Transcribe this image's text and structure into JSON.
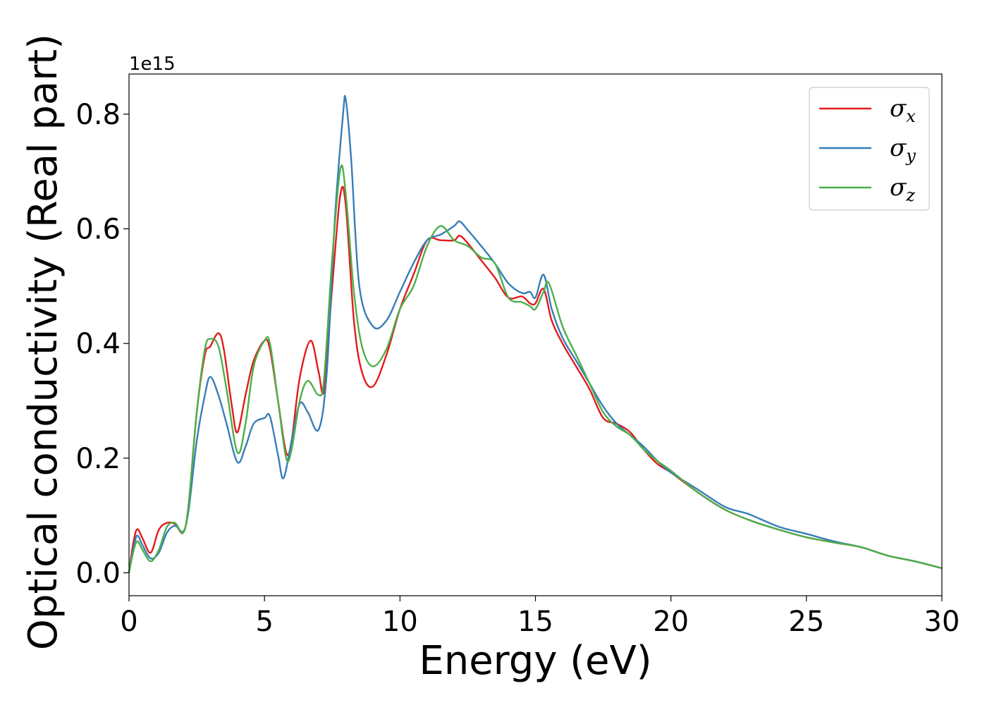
{
  "chart_data": {
    "type": "line",
    "xlabel": "Energy (eV)",
    "ylabel": "Optical conductivity (Real part)",
    "y_offset_label": "1e15",
    "xlim": [
      0,
      30
    ],
    "ylim": [
      -0.04,
      0.87
    ],
    "x_ticks": [
      0,
      5,
      10,
      15,
      20,
      25,
      30
    ],
    "y_ticks": [
      0.0,
      0.2,
      0.4,
      0.6,
      0.8
    ],
    "x_tick_labels": [
      "0",
      "5",
      "10",
      "15",
      "20",
      "25",
      "30"
    ],
    "y_tick_labels": [
      "0.0",
      "0.2",
      "0.4",
      "0.6",
      "0.8"
    ],
    "grid": false,
    "legend_position": "top-right",
    "series": [
      {
        "name": "σx",
        "legend_base": "σ",
        "legend_sub": "x",
        "color": "#e41a1c",
        "x": [
          0,
          0.15,
          0.3,
          0.5,
          0.8,
          1.1,
          1.4,
          1.7,
          2.0,
          2.2,
          2.5,
          2.8,
          3.0,
          3.3,
          3.5,
          3.8,
          4.0,
          4.3,
          4.6,
          5.0,
          5.2,
          5.5,
          5.8,
          6.0,
          6.3,
          6.7,
          7.0,
          7.2,
          7.5,
          7.8,
          8.0,
          8.3,
          8.6,
          9.0,
          9.5,
          10.0,
          10.5,
          11.0,
          11.5,
          12.0,
          12.2,
          12.5,
          13.0,
          13.5,
          14.0,
          14.5,
          14.8,
          15.0,
          15.3,
          15.6,
          16.0,
          16.5,
          17.0,
          17.5,
          18.0,
          18.5,
          19.0,
          19.5,
          20.0,
          21.0,
          22.0,
          23.0,
          24.0,
          25.0,
          26.0,
          27.0,
          28.0,
          29.0,
          30.0
        ],
        "values": [
          0.0,
          0.05,
          0.076,
          0.06,
          0.035,
          0.075,
          0.087,
          0.085,
          0.07,
          0.12,
          0.28,
          0.38,
          0.395,
          0.418,
          0.39,
          0.29,
          0.245,
          0.31,
          0.37,
          0.405,
          0.39,
          0.3,
          0.21,
          0.23,
          0.34,
          0.405,
          0.35,
          0.32,
          0.5,
          0.66,
          0.64,
          0.44,
          0.35,
          0.325,
          0.38,
          0.46,
          0.52,
          0.58,
          0.58,
          0.58,
          0.588,
          0.575,
          0.545,
          0.515,
          0.48,
          0.482,
          0.47,
          0.47,
          0.495,
          0.44,
          0.4,
          0.36,
          0.32,
          0.27,
          0.26,
          0.245,
          0.215,
          0.19,
          0.175,
          0.14,
          0.11,
          0.09,
          0.075,
          0.062,
          0.053,
          0.045,
          0.03,
          0.02,
          0.008
        ]
      },
      {
        "name": "σy",
        "legend_base": "σ",
        "legend_sub": "y",
        "color": "#377eb8",
        "x": [
          0,
          0.15,
          0.3,
          0.5,
          0.8,
          1.1,
          1.4,
          1.7,
          2.0,
          2.2,
          2.5,
          2.8,
          3.0,
          3.3,
          3.6,
          4.0,
          4.3,
          4.6,
          5.0,
          5.2,
          5.5,
          5.7,
          6.0,
          6.3,
          6.6,
          7.0,
          7.3,
          7.6,
          7.9,
          8.0,
          8.2,
          8.5,
          9.0,
          9.5,
          10.0,
          10.5,
          11.0,
          11.5,
          12.0,
          12.2,
          12.5,
          13.0,
          13.5,
          14.0,
          14.5,
          14.8,
          15.0,
          15.3,
          15.6,
          16.0,
          16.5,
          17.0,
          17.5,
          18.0,
          18.5,
          19.0,
          19.5,
          20.0,
          21.0,
          22.0,
          22.7,
          23.0,
          24.0,
          25.0,
          26.0,
          27.0,
          28.0,
          29.0,
          30.0
        ],
        "values": [
          0.0,
          0.04,
          0.065,
          0.048,
          0.025,
          0.035,
          0.07,
          0.082,
          0.072,
          0.11,
          0.23,
          0.31,
          0.342,
          0.31,
          0.26,
          0.193,
          0.22,
          0.26,
          0.27,
          0.273,
          0.205,
          0.165,
          0.23,
          0.295,
          0.28,
          0.25,
          0.35,
          0.62,
          0.8,
          0.825,
          0.72,
          0.5,
          0.43,
          0.44,
          0.49,
          0.54,
          0.58,
          0.59,
          0.605,
          0.613,
          0.598,
          0.57,
          0.54,
          0.505,
          0.488,
          0.49,
          0.48,
          0.52,
          0.46,
          0.41,
          0.37,
          0.33,
          0.29,
          0.26,
          0.24,
          0.22,
          0.195,
          0.175,
          0.145,
          0.115,
          0.105,
          0.1,
          0.08,
          0.068,
          0.055,
          0.045,
          0.03,
          0.02,
          0.008
        ]
      },
      {
        "name": "σz",
        "legend_base": "σ",
        "legend_sub": "z",
        "color": "#4daf4a",
        "x": [
          0,
          0.15,
          0.3,
          0.5,
          0.8,
          1.1,
          1.4,
          1.7,
          2.0,
          2.2,
          2.5,
          2.8,
          3.0,
          3.3,
          3.6,
          4.0,
          4.3,
          4.6,
          5.0,
          5.2,
          5.5,
          5.8,
          6.0,
          6.3,
          6.6,
          7.0,
          7.2,
          7.5,
          7.8,
          8.0,
          8.3,
          8.6,
          9.0,
          9.5,
          10.0,
          10.5,
          11.0,
          11.5,
          12.0,
          12.5,
          13.0,
          13.5,
          14.0,
          14.5,
          14.8,
          15.0,
          15.3,
          15.5,
          16.0,
          16.5,
          17.0,
          17.5,
          18.0,
          18.5,
          19.0,
          19.5,
          20.0,
          21.0,
          22.0,
          23.0,
          24.0,
          25.0,
          26.0,
          27.0,
          28.0,
          29.0,
          30.0
        ],
        "values": [
          0.0,
          0.035,
          0.055,
          0.04,
          0.02,
          0.04,
          0.08,
          0.087,
          0.07,
          0.12,
          0.28,
          0.39,
          0.408,
          0.395,
          0.32,
          0.21,
          0.26,
          0.36,
          0.405,
          0.4,
          0.3,
          0.2,
          0.215,
          0.3,
          0.335,
          0.31,
          0.34,
          0.55,
          0.705,
          0.66,
          0.49,
          0.395,
          0.36,
          0.39,
          0.46,
          0.5,
          0.57,
          0.605,
          0.58,
          0.57,
          0.55,
          0.54,
          0.48,
          0.472,
          0.465,
          0.46,
          0.49,
          0.505,
          0.43,
          0.38,
          0.33,
          0.28,
          0.255,
          0.24,
          0.215,
          0.195,
          0.178,
          0.14,
          0.11,
          0.09,
          0.075,
          0.062,
          0.053,
          0.045,
          0.03,
          0.02,
          0.008
        ]
      }
    ]
  }
}
